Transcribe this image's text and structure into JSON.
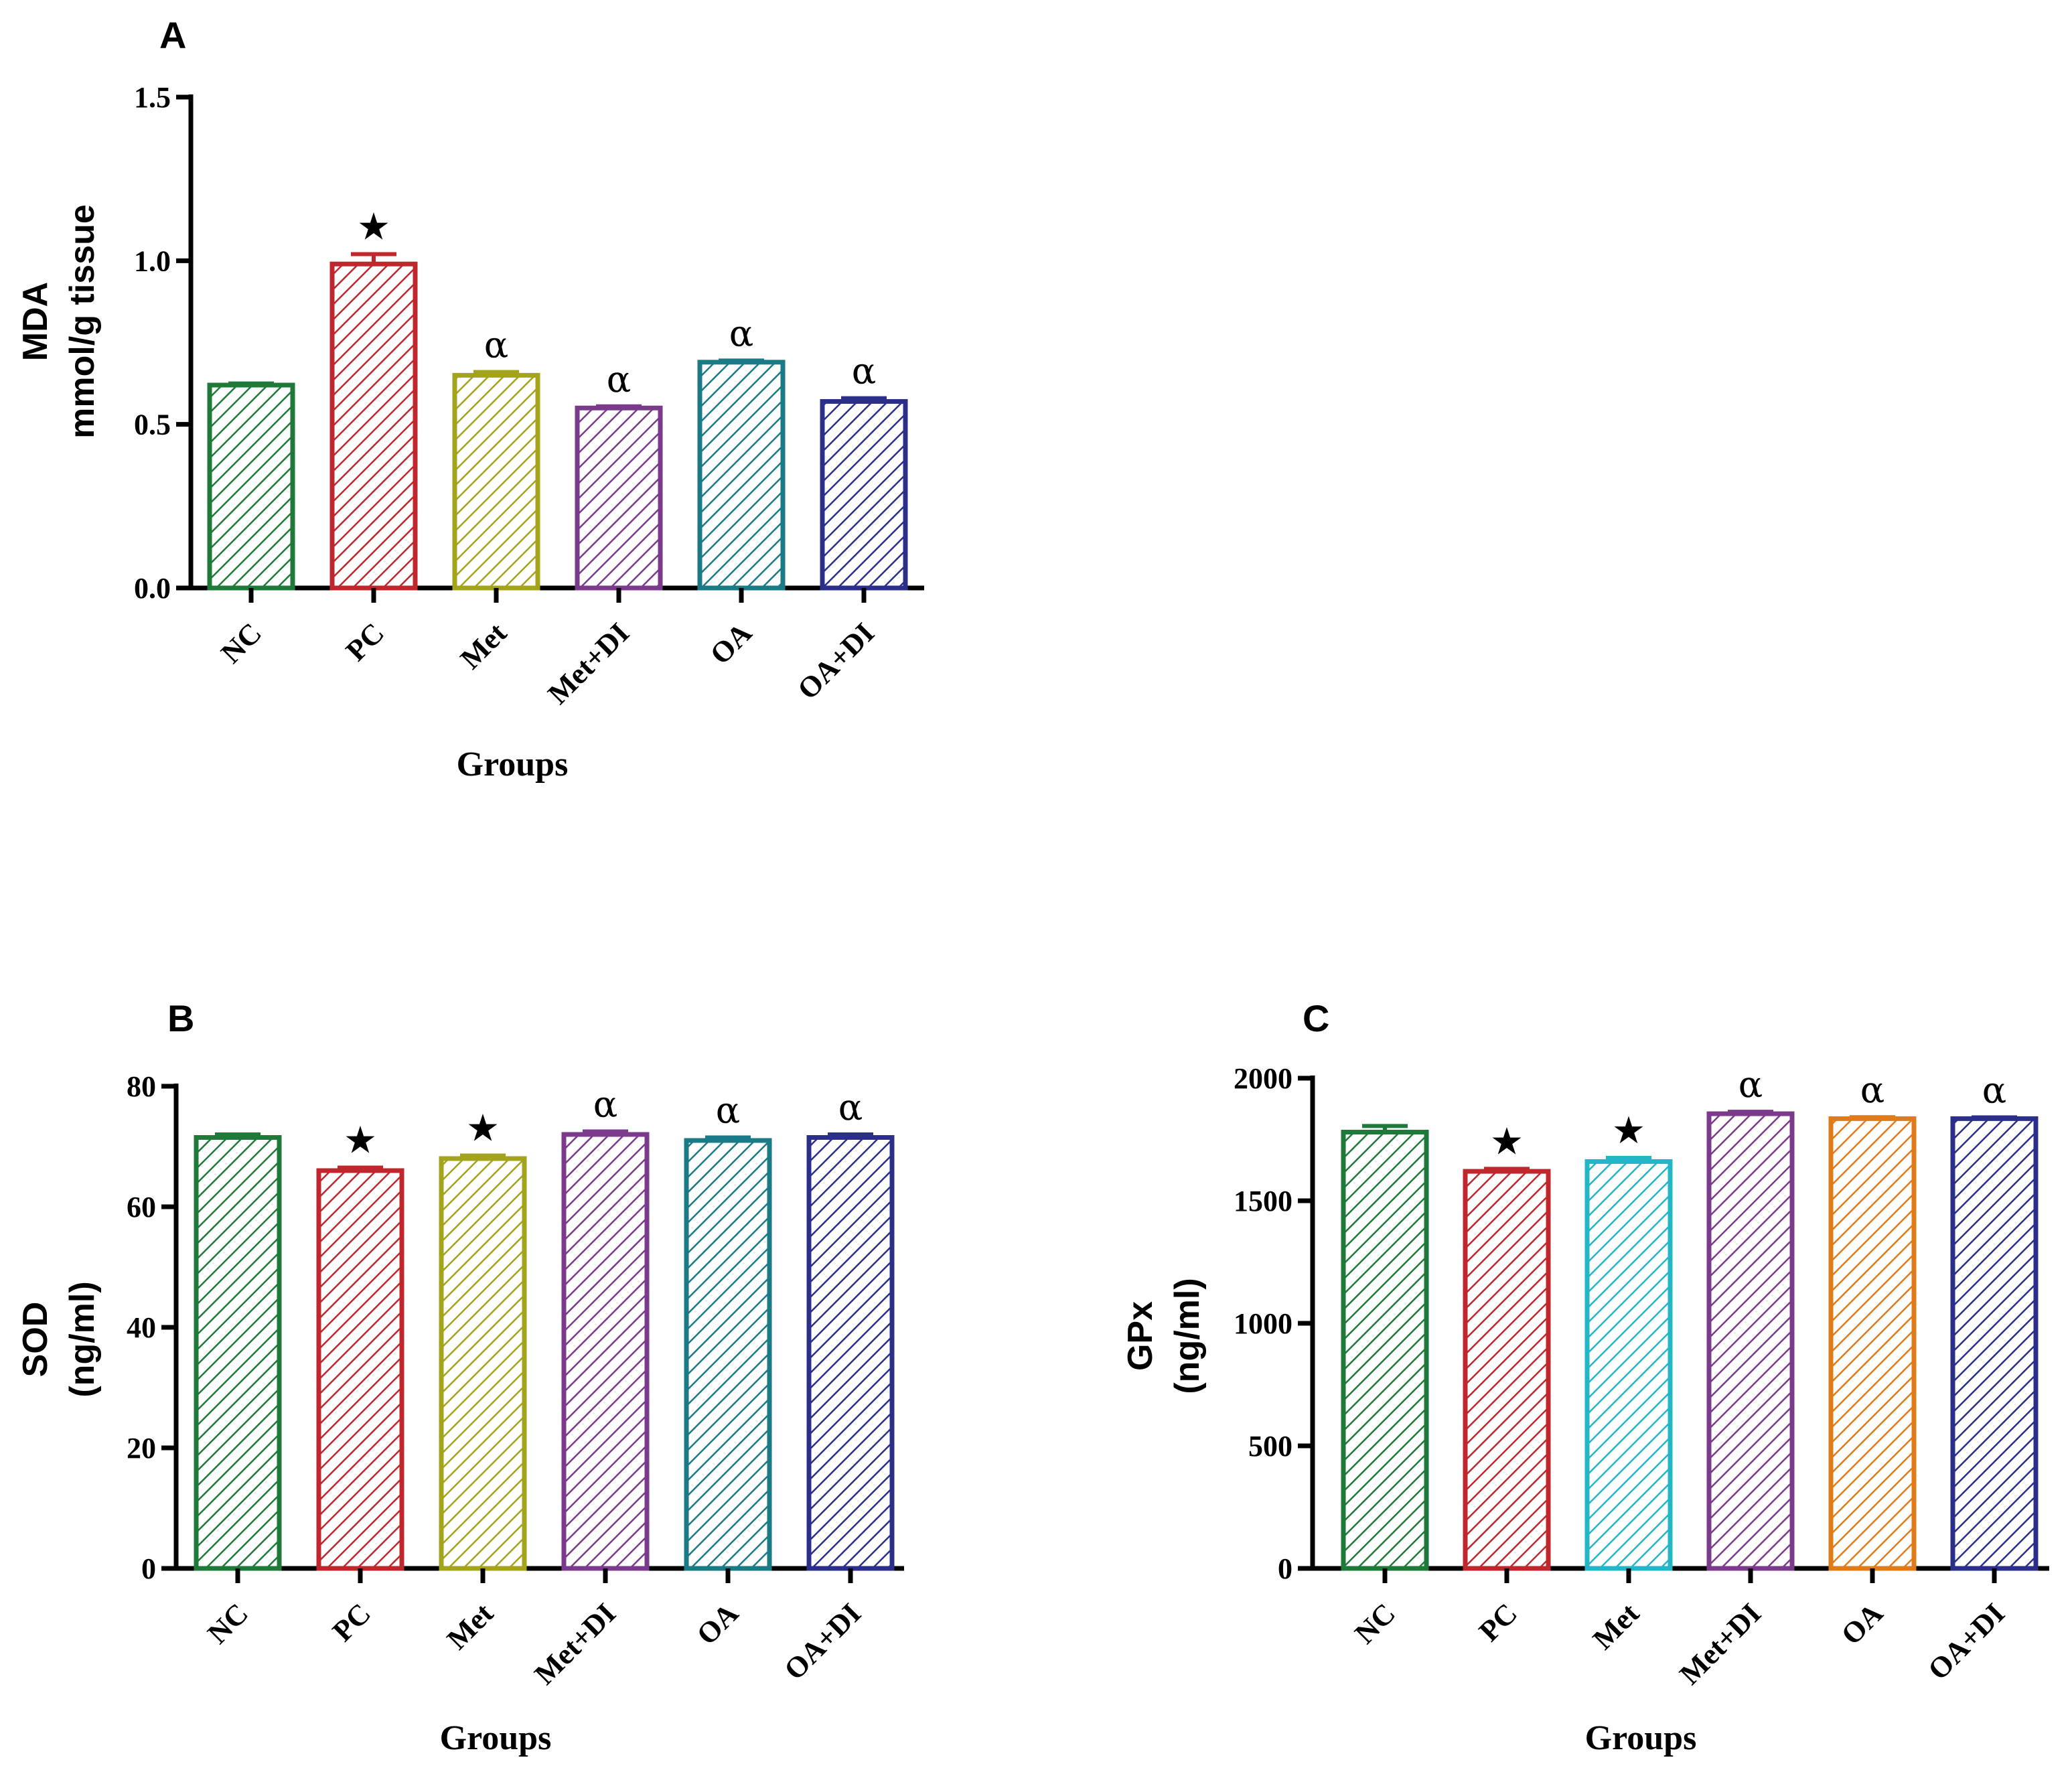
{
  "colors": {
    "NC": "#1f7a3a",
    "PC": "#c0272d",
    "Met": "#a3a31c",
    "Met+DI": "#7b3a8c",
    "OA": "#1a7a86",
    "OA+DI": "#2b2f8a",
    "Met_C": "#23b5c8",
    "OA_C": "#e07b1a"
  },
  "chart_data": [
    {
      "panel": "A",
      "type": "bar",
      "title": "",
      "ylabel_line1": "MDA",
      "ylabel_line2": "mmol/g tissue",
      "xlabel": "Groups",
      "categories": [
        "NC",
        "PC",
        "Met",
        "Met+DI",
        "OA",
        "OA+DI"
      ],
      "values": [
        0.62,
        0.99,
        0.65,
        0.55,
        0.69,
        0.57
      ],
      "errors": [
        0.005,
        0.03,
        0.01,
        0.005,
        0.005,
        0.01
      ],
      "annotations": [
        "",
        "★",
        "α",
        "α",
        "α",
        "α"
      ],
      "yticks": [
        "0.0",
        "0.5",
        "1.0",
        "1.5"
      ],
      "ylim": [
        0,
        1.5
      ],
      "bar_colors": [
        "#1f7a3a",
        "#c0272d",
        "#a3a31c",
        "#7b3a8c",
        "#1a7a86",
        "#2b2f8a"
      ],
      "grid": false
    },
    {
      "panel": "B",
      "type": "bar",
      "title": "",
      "ylabel_line1": "SOD",
      "ylabel_line2": "(ng/ml)",
      "xlabel": "Groups",
      "categories": [
        "NC",
        "PC",
        "Met",
        "Met+DI",
        "OA",
        "OA+DI"
      ],
      "values": [
        71.5,
        66,
        68,
        72,
        71,
        71.5
      ],
      "errors": [
        0.5,
        0.5,
        0.5,
        0.5,
        0.5,
        0.5
      ],
      "annotations": [
        "",
        "★",
        "★",
        "α",
        "α",
        "α"
      ],
      "yticks": [
        "0",
        "20",
        "40",
        "60",
        "80"
      ],
      "ylim": [
        0,
        80
      ],
      "bar_colors": [
        "#1f7a3a",
        "#c0272d",
        "#a3a31c",
        "#7b3a8c",
        "#1a7a86",
        "#2b2f8a"
      ],
      "grid": false
    },
    {
      "panel": "C",
      "type": "bar",
      "title": "",
      "ylabel_line1": "GPx",
      "ylabel_line2": "(ng/ml)",
      "xlabel": "Groups",
      "categories": [
        "NC",
        "PC",
        "Met",
        "Met+DI",
        "OA",
        "OA+DI"
      ],
      "values": [
        1780,
        1620,
        1660,
        1855,
        1835,
        1835
      ],
      "errors": [
        25,
        10,
        15,
        8,
        6,
        5
      ],
      "annotations": [
        "",
        "★",
        "★",
        "α",
        "α",
        "α"
      ],
      "yticks": [
        "0",
        "500",
        "1000",
        "1500",
        "2000"
      ],
      "ylim": [
        0,
        2000
      ],
      "bar_colors": [
        "#1f7a3a",
        "#c0272d",
        "#23b5c8",
        "#7b3a8c",
        "#e07b1a",
        "#2b2f8a"
      ],
      "grid": false
    }
  ]
}
